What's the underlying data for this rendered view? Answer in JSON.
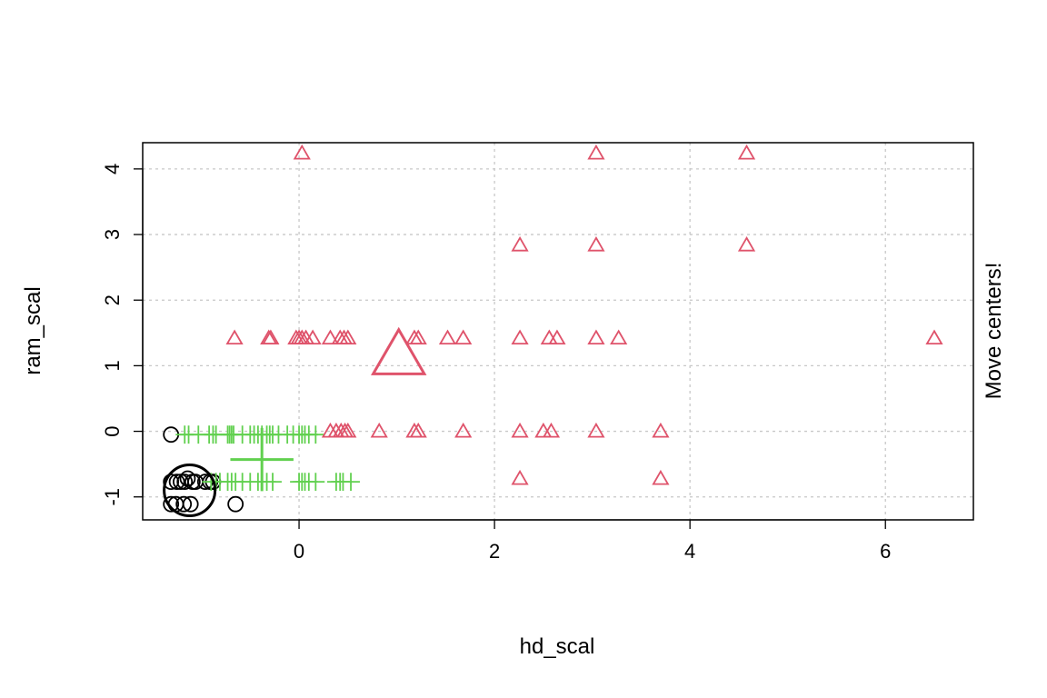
{
  "chart_data": {
    "type": "scatter",
    "title": "",
    "xlabel": "hd_scal",
    "ylabel": "ram_scal",
    "side_text": "Move centers!",
    "xlim": [
      -1.6,
      6.9
    ],
    "ylim": [
      -1.35,
      4.4
    ],
    "x_ticks": [
      0,
      2,
      4,
      6
    ],
    "y_ticks": [
      -1,
      0,
      1,
      2,
      3,
      4
    ],
    "grid": true,
    "legend": "none",
    "series": [
      {
        "marker": "circle",
        "color": "#000000",
        "points": [
          [
            -1.31,
            -0.05
          ],
          [
            -1.31,
            -0.77
          ],
          [
            -1.31,
            -1.11
          ],
          [
            -1.26,
            -1.11
          ],
          [
            -1.25,
            -0.77
          ],
          [
            -1.21,
            -0.77
          ],
          [
            -1.18,
            -1.11
          ],
          [
            -1.17,
            -0.77
          ],
          [
            -1.14,
            -0.72
          ],
          [
            -1.11,
            -1.11
          ],
          [
            -1.09,
            -0.77
          ],
          [
            -1.06,
            -0.77
          ],
          [
            -0.96,
            -0.77
          ],
          [
            -0.91,
            -0.77
          ],
          [
            -0.88,
            -0.77
          ],
          [
            -0.65,
            -1.11
          ]
        ],
        "center": [
          -1.12,
          -0.9
        ]
      },
      {
        "marker": "plus",
        "color": "#61D04F",
        "points": [
          [
            -1.17,
            -0.05
          ],
          [
            -1.13,
            -0.05
          ],
          [
            -1.03,
            -0.05
          ],
          [
            -0.92,
            -0.05
          ],
          [
            -0.88,
            -0.05
          ],
          [
            -0.85,
            -0.05
          ],
          [
            -0.73,
            -0.05
          ],
          [
            -0.71,
            -0.05
          ],
          [
            -0.69,
            -0.05
          ],
          [
            -0.67,
            -0.05
          ],
          [
            -0.58,
            -0.05
          ],
          [
            -0.5,
            -0.05
          ],
          [
            -0.46,
            -0.05
          ],
          [
            -0.42,
            -0.05
          ],
          [
            -0.38,
            -0.05
          ],
          [
            -0.33,
            -0.05
          ],
          [
            -0.3,
            -0.05
          ],
          [
            -0.27,
            -0.05
          ],
          [
            -0.21,
            -0.05
          ],
          [
            -0.12,
            -0.05
          ],
          [
            -0.06,
            -0.05
          ],
          [
            0.0,
            -0.05
          ],
          [
            0.03,
            -0.05
          ],
          [
            0.06,
            -0.05
          ],
          [
            0.1,
            -0.05
          ],
          [
            0.17,
            -0.05
          ],
          [
            -0.9,
            -0.77
          ],
          [
            -0.85,
            -0.77
          ],
          [
            -0.81,
            -0.77
          ],
          [
            -0.73,
            -0.77
          ],
          [
            -0.69,
            -0.77
          ],
          [
            -0.65,
            -0.77
          ],
          [
            -0.58,
            -0.77
          ],
          [
            -0.5,
            -0.77
          ],
          [
            -0.42,
            -0.77
          ],
          [
            -0.33,
            -0.77
          ],
          [
            -0.27,
            -0.77
          ],
          [
            0.0,
            -0.77
          ],
          [
            0.03,
            -0.77
          ],
          [
            0.06,
            -0.77
          ],
          [
            0.1,
            -0.77
          ],
          [
            0.17,
            -0.77
          ],
          [
            0.38,
            -0.77
          ],
          [
            0.42,
            -0.77
          ],
          [
            0.45,
            -0.77
          ],
          [
            0.53,
            -0.77
          ]
        ],
        "center": [
          -0.38,
          -0.43
        ]
      },
      {
        "marker": "triangle",
        "color": "#DF536B",
        "points": [
          [
            0.03,
            4.22
          ],
          [
            3.04,
            4.22
          ],
          [
            4.58,
            4.22
          ],
          [
            2.26,
            2.82
          ],
          [
            3.04,
            2.82
          ],
          [
            4.58,
            2.82
          ],
          [
            -0.66,
            1.4
          ],
          [
            -0.31,
            1.4
          ],
          [
            -0.29,
            1.4
          ],
          [
            -0.03,
            1.4
          ],
          [
            0.0,
            1.4
          ],
          [
            0.03,
            1.4
          ],
          [
            0.07,
            1.4
          ],
          [
            0.14,
            1.4
          ],
          [
            0.32,
            1.4
          ],
          [
            0.42,
            1.4
          ],
          [
            0.46,
            1.4
          ],
          [
            0.5,
            1.4
          ],
          [
            1.18,
            1.4
          ],
          [
            1.22,
            1.4
          ],
          [
            1.52,
            1.4
          ],
          [
            1.68,
            1.4
          ],
          [
            2.26,
            1.4
          ],
          [
            2.56,
            1.4
          ],
          [
            2.64,
            1.4
          ],
          [
            3.04,
            1.4
          ],
          [
            3.27,
            1.4
          ],
          [
            6.5,
            1.4
          ],
          [
            0.32,
            -0.02
          ],
          [
            0.38,
            -0.02
          ],
          [
            0.43,
            -0.02
          ],
          [
            0.47,
            -0.02
          ],
          [
            0.5,
            -0.02
          ],
          [
            0.82,
            -0.02
          ],
          [
            1.18,
            -0.02
          ],
          [
            1.22,
            -0.02
          ],
          [
            1.68,
            -0.02
          ],
          [
            2.26,
            -0.02
          ],
          [
            2.5,
            -0.02
          ],
          [
            2.58,
            -0.02
          ],
          [
            3.04,
            -0.02
          ],
          [
            3.7,
            -0.02
          ],
          [
            2.26,
            -0.74
          ],
          [
            3.7,
            -0.74
          ]
        ],
        "center": [
          1.02,
          1.1
        ]
      }
    ]
  }
}
